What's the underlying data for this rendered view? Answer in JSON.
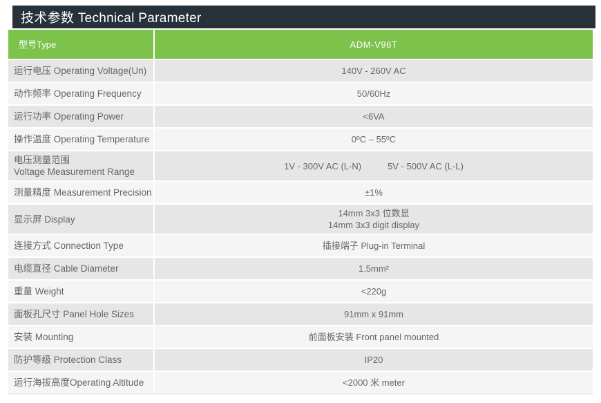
{
  "title": "技术参数 Technical Parameter",
  "colors": {
    "header_bg": "#273139",
    "accent_green": "#7cc24b",
    "row_dark": "#e6e6e7",
    "row_light": "#f5f5f6",
    "text_gray": "#666666",
    "header_text": "#ffffff"
  },
  "model_row": {
    "label": "型号Type",
    "value": "ADM-V96T"
  },
  "rows": [
    {
      "label_lines": [
        "运行电压 Operating Voltage(Un)"
      ],
      "value_parts": [
        "140V - 260V AC"
      ]
    },
    {
      "label_lines": [
        "动作频率 Operating Frequency"
      ],
      "value_parts": [
        "50/60Hz"
      ]
    },
    {
      "label_lines": [
        "运行功率 Operating Power"
      ],
      "value_parts": [
        "<6VA"
      ]
    },
    {
      "label_lines": [
        "操作温度 Operating Temperature"
      ],
      "value_parts": [
        "0ºC – 55ºC"
      ]
    },
    {
      "label_lines": [
        "电压测量范围",
        "Voltage Measurement Range"
      ],
      "value_parts": [
        "1V - 300V AC (L-N)",
        "5V - 500V AC (L-L)"
      ]
    },
    {
      "label_lines": [
        "测量精度 Measurement Precision"
      ],
      "value_parts": [
        "±1%"
      ]
    },
    {
      "label_lines": [
        "显示屏 Display"
      ],
      "value_parts": [
        "14mm 3x3 位数显"
      ],
      "value_line2": "14mm 3x3 digit display"
    },
    {
      "label_lines": [
        "连接方式 Connection Type"
      ],
      "value_parts": [
        "插接端子 Plug-in Terminal"
      ]
    },
    {
      "label_lines": [
        "电缆直径 Cable Diameter"
      ],
      "value_parts": [
        "1.5mm²"
      ]
    },
    {
      "label_lines": [
        "重量 Weight"
      ],
      "value_parts": [
        "<220g"
      ]
    },
    {
      "label_lines": [
        "面板孔尺寸 Panel Hole Sizes"
      ],
      "value_parts": [
        "91mm x 91mm"
      ]
    },
    {
      "label_lines": [
        "安装 Mounting"
      ],
      "value_parts": [
        "前面板安装 Front panel mounted"
      ]
    },
    {
      "label_lines": [
        "防护等级 Protection Class"
      ],
      "value_parts": [
        "IP20"
      ]
    },
    {
      "label_lines": [
        "运行海拔高度Operating Altitude"
      ],
      "value_parts": [
        "<2000 米 meter"
      ]
    }
  ]
}
